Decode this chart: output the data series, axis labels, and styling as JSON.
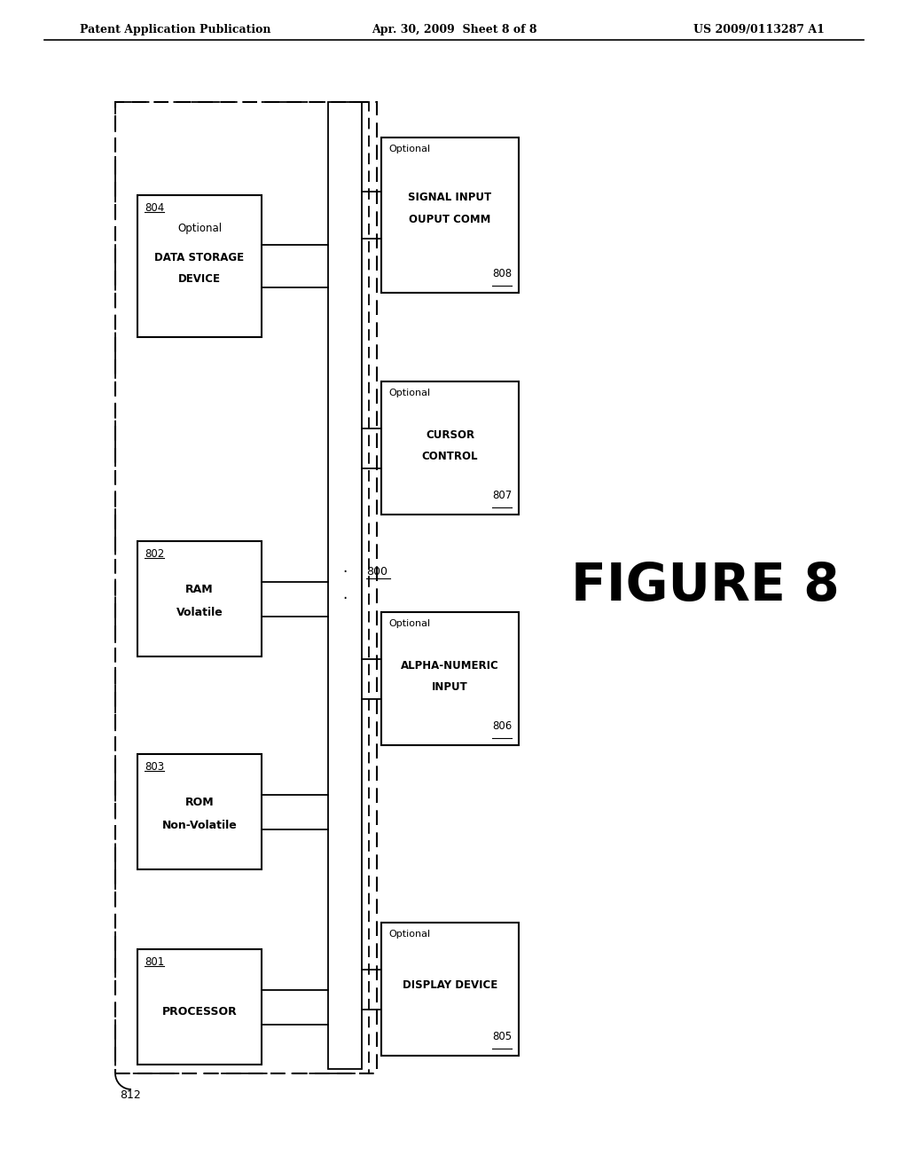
{
  "bg_color": "#ffffff",
  "header_left": "Patent Application Publication",
  "header_mid": "Apr. 30, 2009  Sheet 8 of 8",
  "header_right": "US 2009/0113287 A1",
  "figure_label": "FIGURE 8"
}
